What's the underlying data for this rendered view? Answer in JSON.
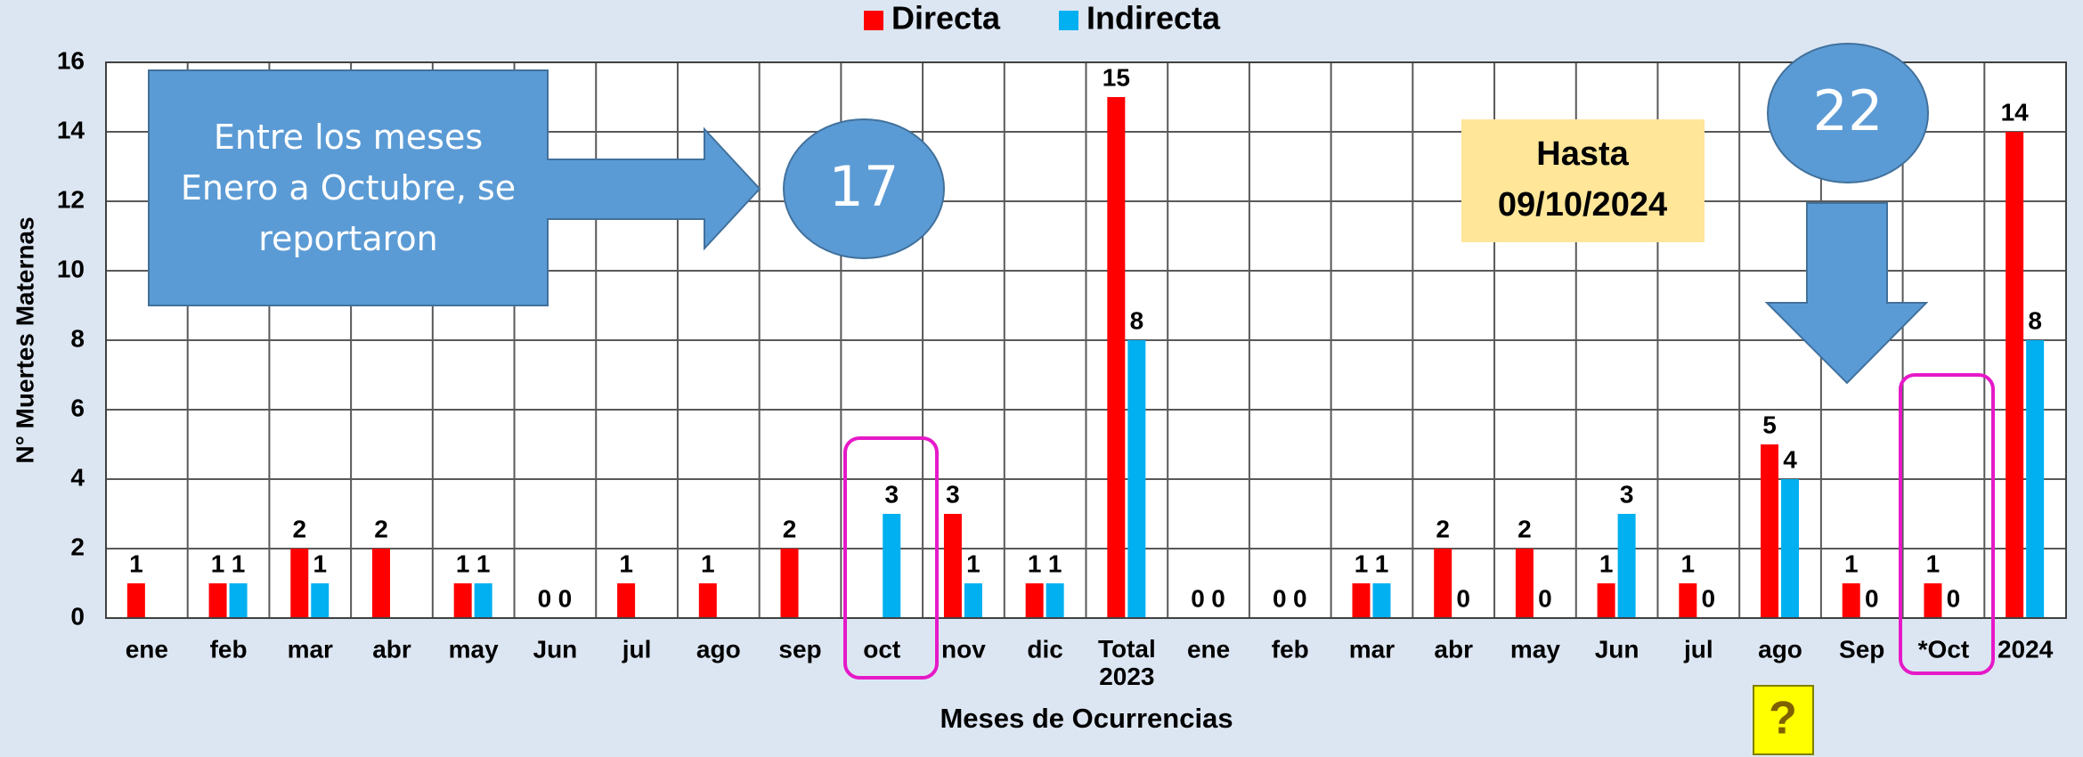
{
  "chart_data": {
    "type": "bar",
    "categories": [
      "ene",
      "feb",
      "mar",
      "abr",
      "may",
      "Jun",
      "jul",
      "ago",
      "sep",
      "oct",
      "nov",
      "dic",
      "Total 2023",
      "ene",
      "feb",
      "mar",
      "abr",
      "may",
      "Jun",
      "jul",
      "ago",
      "Sep",
      "*Oct",
      "2024"
    ],
    "series": [
      {
        "name": "Directa",
        "color": "#ff0000",
        "values": [
          1,
          1,
          2,
          2,
          1,
          0,
          1,
          1,
          2,
          null,
          3,
          1,
          15,
          0,
          0,
          1,
          2,
          2,
          1,
          1,
          5,
          1,
          1,
          14
        ]
      },
      {
        "name": "Indirecta",
        "color": "#00b0f0",
        "values": [
          null,
          1,
          1,
          null,
          1,
          0,
          null,
          null,
          null,
          3,
          1,
          1,
          8,
          0,
          0,
          1,
          0,
          0,
          3,
          0,
          4,
          0,
          0,
          8
        ]
      }
    ],
    "ylim": [
      0,
      16
    ],
    "yticks": [
      0,
      2,
      4,
      6,
      8,
      10,
      12,
      14,
      16
    ],
    "grid": true,
    "y_label": "N° Muertes Maternas",
    "x_label": "Meses de Ocurrencias",
    "annotations": {
      "box_text": [
        "Entre los meses",
        "Enero a Octubre, se",
        "reportaron"
      ],
      "circle_1": "17",
      "date_text": [
        "Hasta",
        "09/10/2024"
      ],
      "circle_2": "22",
      "help": "?"
    }
  }
}
